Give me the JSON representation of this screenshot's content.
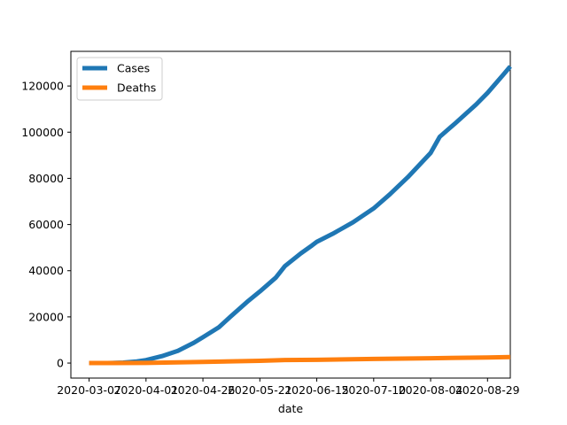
{
  "chart_data": {
    "type": "line",
    "xlabel": "date",
    "ylabel": "",
    "title": "",
    "xlim": [
      "2020-02-28",
      "2020-09-08"
    ],
    "ylim": [
      -6500,
      135000
    ],
    "x_ticks": [
      "2020-03-07",
      "2020-04-01",
      "2020-04-26",
      "2020-05-21",
      "2020-06-15",
      "2020-07-10",
      "2020-08-04",
      "2020-08-29"
    ],
    "y_ticks": [
      0,
      20000,
      40000,
      60000,
      80000,
      100000,
      120000
    ],
    "y_tick_labels": [
      "0",
      "20000",
      "40000",
      "60000",
      "80000",
      "100000",
      "120000"
    ],
    "legend_position": "top-left",
    "grid": false,
    "series": [
      {
        "name": "Cases",
        "color": "#1f77b4",
        "points": [
          [
            "2020-03-07",
            0
          ],
          [
            "2020-03-15",
            20
          ],
          [
            "2020-03-22",
            200
          ],
          [
            "2020-03-28",
            700
          ],
          [
            "2020-04-01",
            1300
          ],
          [
            "2020-04-08",
            3000
          ],
          [
            "2020-04-15",
            5300
          ],
          [
            "2020-04-22",
            8800
          ],
          [
            "2020-04-26",
            11200
          ],
          [
            "2020-05-03",
            15500
          ],
          [
            "2020-05-08",
            20000
          ],
          [
            "2020-05-16",
            27000
          ],
          [
            "2020-05-21",
            31000
          ],
          [
            "2020-05-28",
            37000
          ],
          [
            "2020-06-01",
            42000
          ],
          [
            "2020-06-08",
            47500
          ],
          [
            "2020-06-13",
            51000
          ],
          [
            "2020-06-15",
            52500
          ],
          [
            "2020-06-22",
            56000
          ],
          [
            "2020-07-01",
            61000
          ],
          [
            "2020-07-10",
            67000
          ],
          [
            "2020-07-17",
            73000
          ],
          [
            "2020-07-25",
            80500
          ],
          [
            "2020-08-04",
            91000
          ],
          [
            "2020-08-08",
            98000
          ],
          [
            "2020-08-15",
            104000
          ],
          [
            "2020-08-24",
            112000
          ],
          [
            "2020-08-29",
            117000
          ],
          [
            "2020-09-05",
            125000
          ],
          [
            "2020-09-08",
            128500
          ]
        ]
      },
      {
        "name": "Deaths",
        "color": "#ff7f0e",
        "points": [
          [
            "2020-03-07",
            0
          ],
          [
            "2020-04-01",
            50
          ],
          [
            "2020-04-26",
            500
          ],
          [
            "2020-05-21",
            1000
          ],
          [
            "2020-06-01",
            1300
          ],
          [
            "2020-06-15",
            1400
          ],
          [
            "2020-07-10",
            1800
          ],
          [
            "2020-08-04",
            2100
          ],
          [
            "2020-08-29",
            2400
          ],
          [
            "2020-09-08",
            2600
          ]
        ]
      }
    ]
  }
}
